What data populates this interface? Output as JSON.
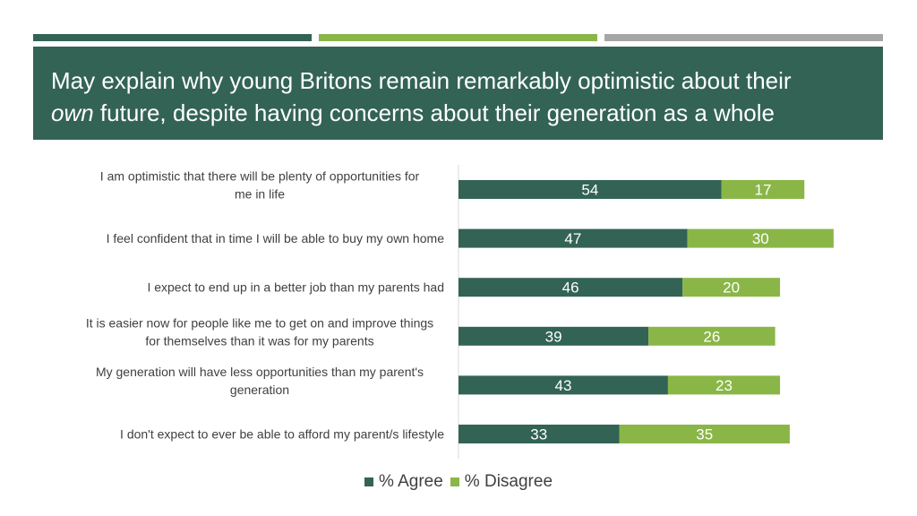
{
  "header": {
    "accent_bars": [
      "#336355",
      "#8ab648",
      "#a6a6a6"
    ],
    "title_line1": "May explain why young Britons remain remarkably optimistic about their",
    "title_line2_em": "own",
    "title_line2_rest": " future, despite having concerns about their generation as a whole",
    "banner_color": "#336355"
  },
  "chart_data": {
    "type": "bar",
    "orientation": "horizontal",
    "stacked": true,
    "categories": [
      "I am optimistic that there will be plenty of opportunities for|me in life",
      "I feel confident that in time I will be able to buy my own home",
      "I expect to end up in a better job than my parents had",
      "It is easier now for people like me to get on and improve things|for themselves than it was for my parents",
      "My generation will have less opportunities than my parent's|generation",
      "I don't expect to ever be able to afford my parent/s lifestyle"
    ],
    "series": [
      {
        "name": "% Agree",
        "color": "#336355",
        "values": [
          54,
          47,
          46,
          39,
          43,
          33
        ]
      },
      {
        "name": "% Disagree",
        "color": "#8ab648",
        "values": [
          17,
          30,
          20,
          26,
          23,
          35
        ]
      }
    ],
    "xlim": [
      0,
      100
    ],
    "legend_position": "bottom",
    "grid": false
  }
}
